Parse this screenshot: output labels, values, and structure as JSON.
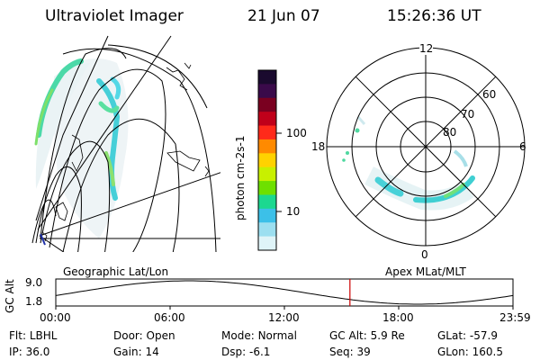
{
  "header": {
    "instrument": "Ultraviolet Imager",
    "date": "21 Jun 07",
    "time": "15:26:36 UT"
  },
  "colorbar": {
    "unit_label": "photon cm-2s-1",
    "ticks": [
      "100",
      "10"
    ],
    "colors": [
      "#1a0a2e",
      "#3a0a4a",
      "#7a0020",
      "#c0001a",
      "#ff2a1a",
      "#ff8a00",
      "#ffd200",
      "#c8f000",
      "#6ee000",
      "#1cd890",
      "#3cc0e8",
      "#9cdff0",
      "#dff4f8"
    ]
  },
  "polar_grid": {
    "mlt_labels": [
      "12",
      "18",
      "6",
      "0"
    ],
    "lat_labels": [
      "60",
      "70",
      "80"
    ]
  },
  "timeline": {
    "left_title": "Geographic Lat/Lon",
    "right_title": "Apex MLat/MLT",
    "axis_label": "GC Alt",
    "y_ticks": [
      "9.0",
      "1.8"
    ],
    "x_ticks": [
      "00:00",
      "06:00",
      "12:00",
      "18:00",
      "23:59"
    ],
    "current_time_hours": 15.44,
    "marker_color": "#cc0000"
  },
  "status": {
    "row1": [
      {
        "label": "Flt:",
        "value": "LBHL"
      },
      {
        "label": "Door:",
        "value": "Open"
      },
      {
        "label": "Mode:",
        "value": "Normal"
      },
      {
        "label": "GC Alt:",
        "value": "5.9 Re"
      },
      {
        "label": "GLat:",
        "value": "-57.9"
      }
    ],
    "row2": [
      {
        "label": "IP:",
        "value": "36.0"
      },
      {
        "label": "Gain:",
        "value": "14"
      },
      {
        "label": "Dsp:",
        "value": "-6.1"
      },
      {
        "label": "Seq:",
        "value": "39"
      },
      {
        "label": "GLon:",
        "value": "160.5"
      }
    ]
  }
}
